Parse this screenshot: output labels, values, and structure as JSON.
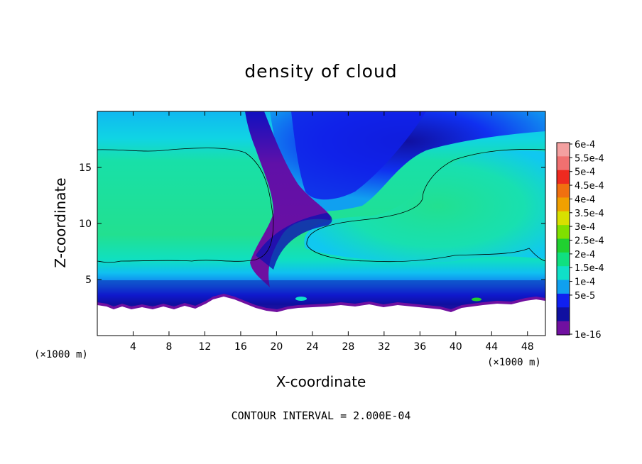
{
  "chart_data": {
    "type": "heatmap",
    "title": "density of cloud",
    "xlabel": "X-coordinate",
    "ylabel": "Z-coordinate",
    "x_unit": "(×1000 m)",
    "y_unit": "(×1000 m)",
    "footnote": "CONTOUR INTERVAL = 2.000E-04",
    "xlim": [
      0,
      50
    ],
    "ylim": [
      0,
      20
    ],
    "x_ticks": [
      4,
      8,
      12,
      16,
      20,
      24,
      28,
      32,
      36,
      40,
      44,
      48
    ],
    "y_ticks": [
      5,
      10,
      15
    ],
    "colorbar": {
      "labels": [
        "6e-4",
        "5.5e-4",
        "5e-4",
        "4.5e-4",
        "4e-4",
        "3.5e-4",
        "3e-4",
        "2.5e-4",
        "2e-4",
        "1.5e-4",
        "1e-4",
        "5e-5",
        "1e-16"
      ],
      "colors": [
        "#f4a0a0",
        "#f07070",
        "#ee2a20",
        "#f07010",
        "#f0a000",
        "#d8e000",
        "#80e000",
        "#20d030",
        "#10e080",
        "#10e0c8",
        "#10a0f0",
        "#1020f0",
        "#1010a0",
        "#7010a0"
      ]
    },
    "contour_level": "2.000E-04"
  }
}
